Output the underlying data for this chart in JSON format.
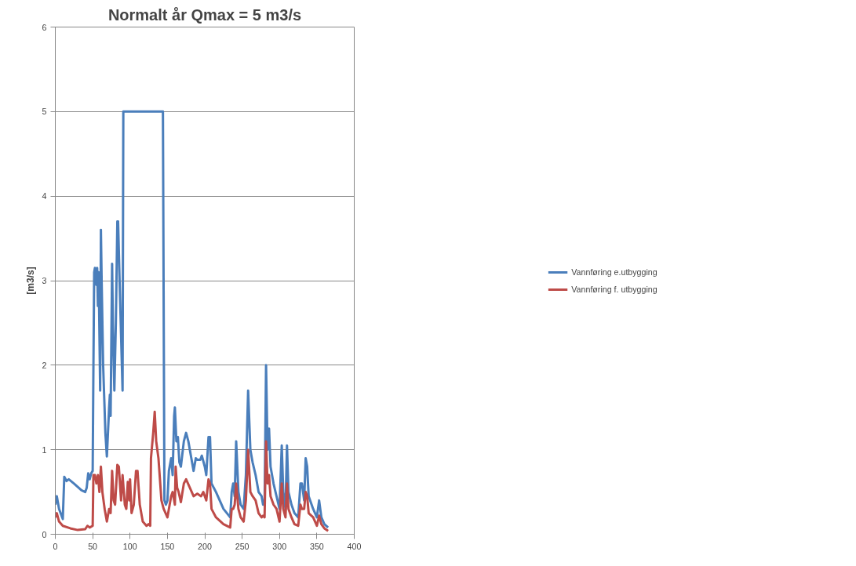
{
  "chart_data": {
    "type": "line",
    "title": "Normalt år Qmax = 5 m3/s",
    "ylabel": "[m3/s]",
    "xlim": [
      0,
      400
    ],
    "xticks": [
      0,
      50,
      100,
      150,
      200,
      250,
      300,
      350,
      400
    ],
    "ylim": [
      0,
      6
    ],
    "yticks": [
      0,
      1,
      2,
      3,
      4,
      5,
      6
    ],
    "grid": "y",
    "legend": "right",
    "marker": "none",
    "line_style": "solid",
    "series": [
      {
        "name": "Vannføring e.utbygging",
        "color": "#4a7ebb",
        "x": [
          0,
          2,
          5,
          10,
          12,
          15,
          18,
          25,
          35,
          40,
          42,
          44,
          46,
          48,
          50,
          51,
          52,
          53,
          54,
          55,
          56,
          57,
          58,
          60,
          61,
          62,
          64,
          67,
          69,
          72,
          73,
          74,
          76,
          77,
          79,
          81,
          83,
          84,
          86,
          90,
          91,
          144,
          146,
          148,
          150,
          152,
          155,
          157,
          159,
          160,
          162,
          164,
          166,
          168,
          172,
          175,
          178,
          182,
          185,
          188,
          190,
          194,
          196,
          200,
          202,
          205,
          207,
          209,
          215,
          225,
          234,
          236,
          238,
          240,
          242,
          245,
          248,
          252,
          255,
          258,
          261,
          264,
          268,
          272,
          276,
          278,
          280,
          282,
          284,
          286,
          288,
          292,
          296,
          300,
          303,
          305,
          308,
          310,
          312,
          316,
          320,
          325,
          328,
          330,
          333,
          335,
          337,
          339,
          345,
          350,
          353,
          356,
          360,
          365
        ],
        "values": [
          0.35,
          0.45,
          0.3,
          0.18,
          0.68,
          0.63,
          0.65,
          0.6,
          0.52,
          0.5,
          0.55,
          0.72,
          0.65,
          0.72,
          0.75,
          2.0,
          3.1,
          3.15,
          3.05,
          2.95,
          3.15,
          2.7,
          3.1,
          1.7,
          3.6,
          3.0,
          2.0,
          1.2,
          0.92,
          1.5,
          1.65,
          1.4,
          3.2,
          2.5,
          1.7,
          2.5,
          3.7,
          3.7,
          3.0,
          1.7,
          5.0,
          5.0,
          0.4,
          0.35,
          0.4,
          0.75,
          0.9,
          0.7,
          1.4,
          1.5,
          1.1,
          1.15,
          0.85,
          0.8,
          1.1,
          1.2,
          1.1,
          0.9,
          0.75,
          0.9,
          0.88,
          0.88,
          0.93,
          0.8,
          0.7,
          1.15,
          1.15,
          0.6,
          0.5,
          0.3,
          0.2,
          0.5,
          0.6,
          0.45,
          1.1,
          0.5,
          0.35,
          0.3,
          0.7,
          1.7,
          1.0,
          0.85,
          0.7,
          0.5,
          0.45,
          0.35,
          0.35,
          2.0,
          1.0,
          1.25,
          0.8,
          0.6,
          0.45,
          0.3,
          1.05,
          0.5,
          0.3,
          1.05,
          0.5,
          0.35,
          0.25,
          0.2,
          0.6,
          0.6,
          0.4,
          0.9,
          0.8,
          0.45,
          0.3,
          0.2,
          0.4,
          0.2,
          0.12,
          0.08
        ]
      },
      {
        "name": "Vannføring f. utbygging",
        "color": "#be4b48",
        "x": [
          0,
          2,
          5,
          10,
          20,
          30,
          40,
          43,
          46,
          50,
          51,
          53,
          55,
          57,
          59,
          61,
          63,
          66,
          69,
          72,
          74,
          76,
          78,
          80,
          83,
          85,
          88,
          90,
          93,
          95,
          97,
          99,
          100,
          102,
          105,
          108,
          110,
          113,
          117,
          122,
          125,
          127,
          128,
          131,
          133,
          135,
          138,
          142,
          145,
          150,
          155,
          157,
          160,
          161,
          163,
          165,
          168,
          172,
          175,
          180,
          185,
          190,
          195,
          198,
          202,
          205,
          207,
          209,
          215,
          225,
          234,
          236,
          238,
          240,
          242,
          245,
          248,
          252,
          255,
          258,
          261,
          264,
          268,
          272,
          276,
          278,
          280,
          282,
          284,
          286,
          288,
          292,
          296,
          300,
          303,
          305,
          308,
          310,
          312,
          316,
          320,
          325,
          328,
          330,
          333,
          335,
          337,
          339,
          345,
          350,
          353,
          356,
          360,
          365
        ],
        "values": [
          0.2,
          0.25,
          0.15,
          0.1,
          0.07,
          0.05,
          0.06,
          0.1,
          0.08,
          0.1,
          0.7,
          0.7,
          0.6,
          0.7,
          0.5,
          0.8,
          0.5,
          0.3,
          0.15,
          0.3,
          0.25,
          0.75,
          0.4,
          0.35,
          0.82,
          0.8,
          0.4,
          0.7,
          0.35,
          0.3,
          0.62,
          0.4,
          0.65,
          0.25,
          0.35,
          0.75,
          0.75,
          0.35,
          0.15,
          0.1,
          0.12,
          0.1,
          0.9,
          1.2,
          1.45,
          1.1,
          0.9,
          0.4,
          0.3,
          0.2,
          0.45,
          0.5,
          0.35,
          0.8,
          0.55,
          0.5,
          0.38,
          0.6,
          0.65,
          0.55,
          0.45,
          0.48,
          0.45,
          0.5,
          0.4,
          0.65,
          0.6,
          0.3,
          0.2,
          0.12,
          0.08,
          0.3,
          0.3,
          0.35,
          0.6,
          0.3,
          0.2,
          0.15,
          0.4,
          1.0,
          0.5,
          0.45,
          0.4,
          0.25,
          0.2,
          0.22,
          0.2,
          1.1,
          0.6,
          0.7,
          0.45,
          0.35,
          0.3,
          0.15,
          0.6,
          0.3,
          0.2,
          0.6,
          0.3,
          0.2,
          0.12,
          0.1,
          0.35,
          0.3,
          0.3,
          0.5,
          0.45,
          0.25,
          0.2,
          0.1,
          0.22,
          0.12,
          0.07,
          0.04
        ]
      }
    ]
  }
}
